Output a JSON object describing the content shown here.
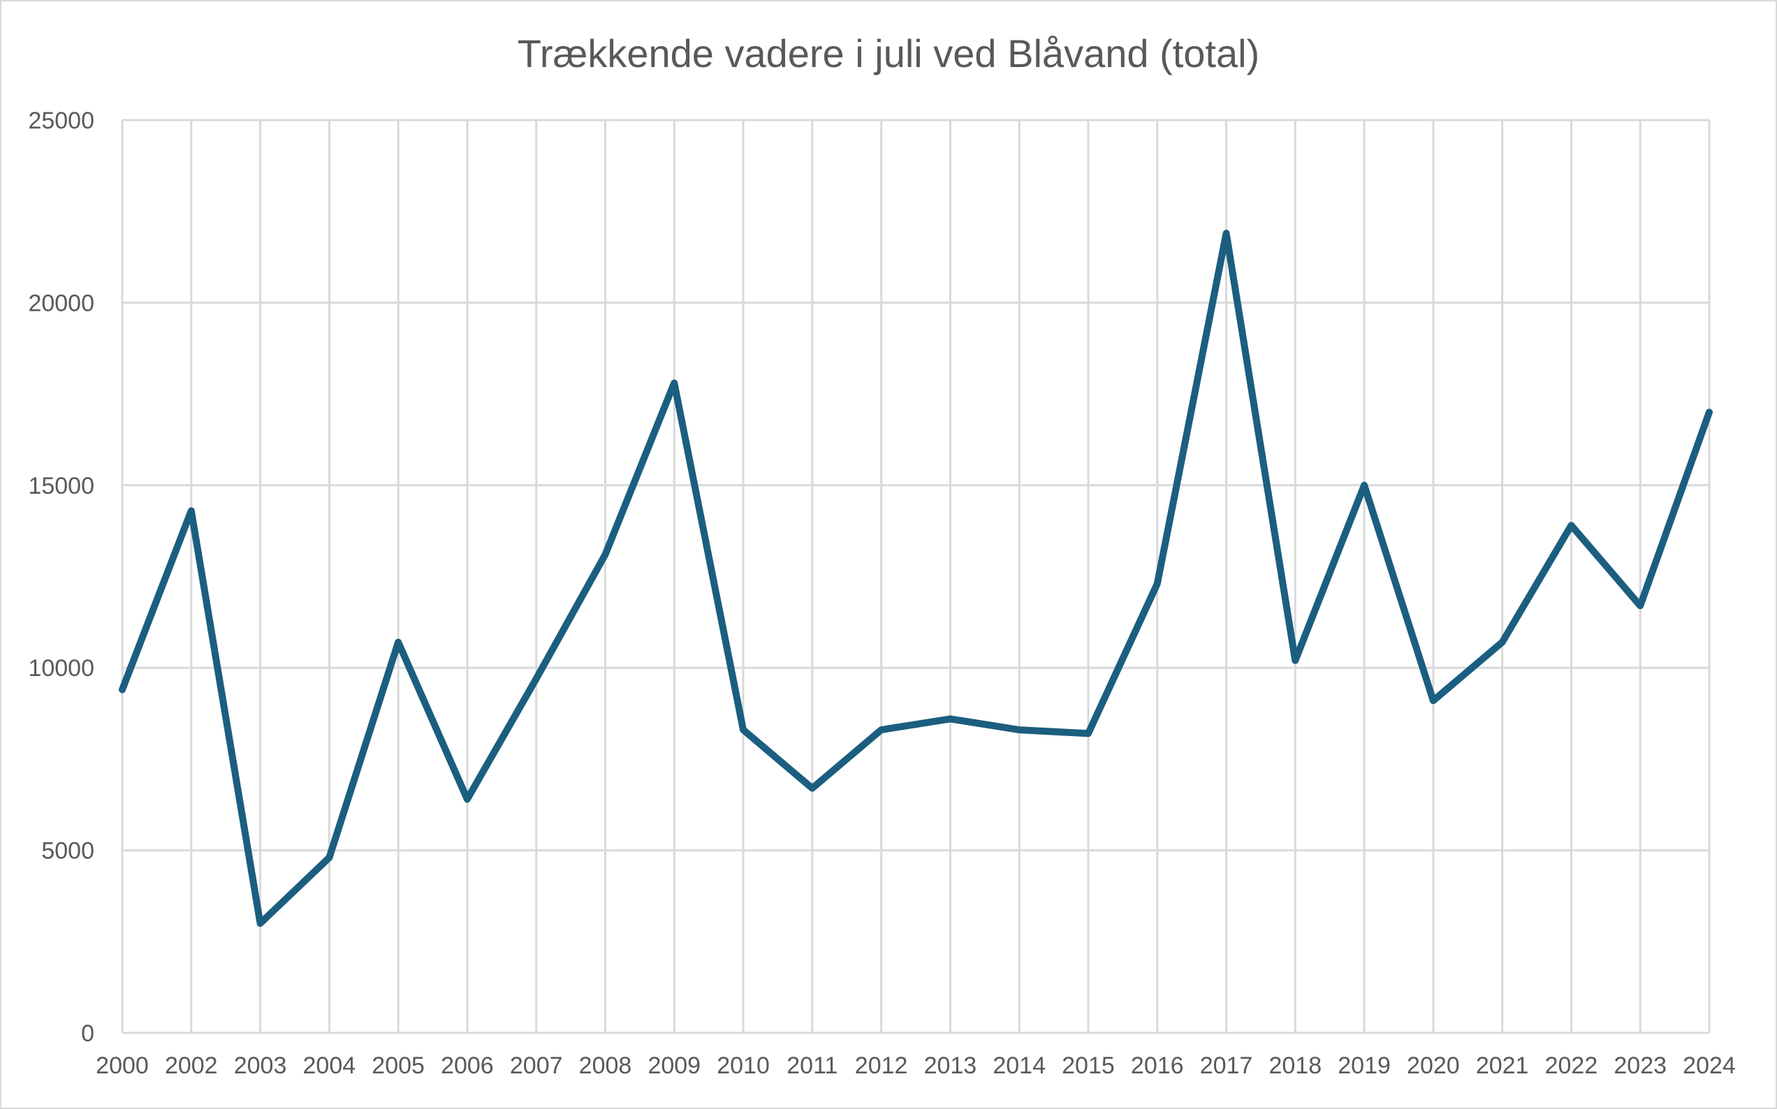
{
  "chart_data": {
    "type": "line",
    "title": "Trækkende vadere i juli ved Blåvand (total)",
    "xlabel": "",
    "ylabel": "",
    "categories": [
      "2000",
      "2002",
      "2003",
      "2004",
      "2005",
      "2006",
      "2007",
      "2008",
      "2009",
      "2010",
      "2011",
      "2012",
      "2013",
      "2014",
      "2015",
      "2016",
      "2017",
      "2018",
      "2019",
      "2020",
      "2021",
      "2022",
      "2023",
      "2024"
    ],
    "series": [
      {
        "name": "",
        "color": "#1b5e80",
        "values": [
          9400,
          14300,
          3000,
          4800,
          10700,
          6400,
          9700,
          13100,
          17800,
          8300,
          6700,
          8300,
          8600,
          8300,
          8200,
          12300,
          21900,
          10200,
          15000,
          9100,
          10700,
          13900,
          11700,
          17000
        ]
      }
    ],
    "y_ticks": [
      "0",
      "5000",
      "10000",
      "15000",
      "20000",
      "25000"
    ],
    "ylim": [
      0,
      25000
    ],
    "grid": {
      "horizontal": true,
      "vertical": true
    },
    "legend": "none"
  }
}
